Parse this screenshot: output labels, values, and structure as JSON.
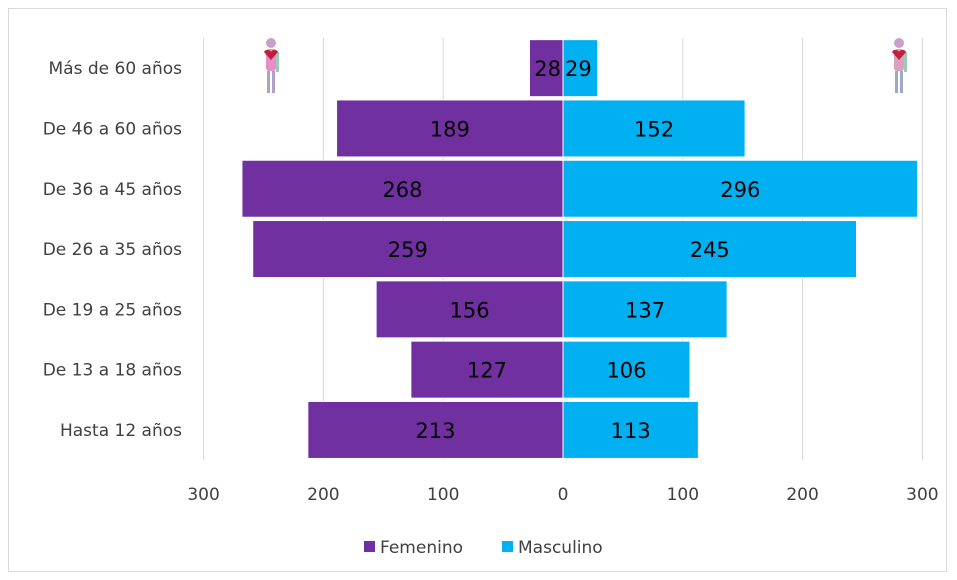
{
  "chart_data": {
    "type": "bar",
    "orientation": "horizontal",
    "layout": "population-pyramid",
    "categories": [
      "Más de 60 años",
      "De 46 a 60 años",
      "De 36 a 45 años",
      "De 26 a 35 años",
      "De 19 a 25 años",
      "De 13 a 18 años",
      "Hasta 12 años"
    ],
    "series": [
      {
        "name": "Femenino",
        "side": "left",
        "color": "#7030a0",
        "values": [
          28,
          189,
          268,
          259,
          156,
          127,
          213
        ]
      },
      {
        "name": "Masculino",
        "side": "right",
        "color": "#00b0f0",
        "values": [
          29,
          152,
          296,
          245,
          137,
          106,
          113
        ]
      }
    ],
    "x_ticks": [
      "300",
      "200",
      "100",
      "0",
      "100",
      "200",
      "300"
    ],
    "xlim": [
      -300,
      300
    ],
    "grid": "vertical",
    "legend": "bottom-center",
    "decorations": [
      "female-figure-icon",
      "male-figure-icon"
    ]
  }
}
